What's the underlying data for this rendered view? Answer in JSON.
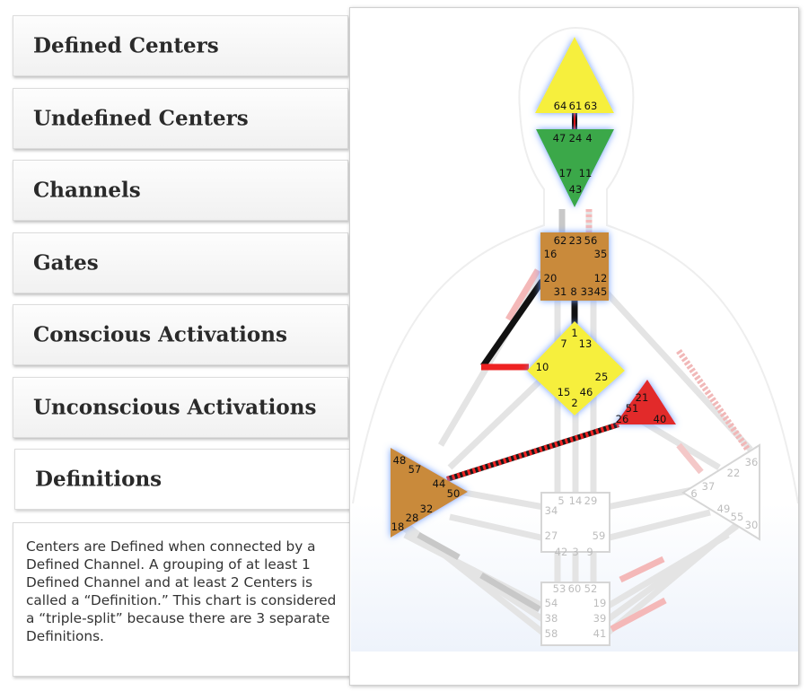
{
  "tabs": [
    {
      "label": "Defined Centers",
      "active": false
    },
    {
      "label": "Undefined Centers",
      "active": false
    },
    {
      "label": "Channels",
      "active": false
    },
    {
      "label": "Gates",
      "active": false
    },
    {
      "label": "Conscious Activations",
      "active": false
    },
    {
      "label": "Unconscious Activations",
      "active": false
    },
    {
      "label": "Definitions",
      "active": true
    }
  ],
  "description": "Centers are Defined when connected by a Defined Channel. A grouping of at least 1 Defined Channel and at least 2 Centers is called a “Definition.” This chart is considered a “triple-split” because there are 3 separate Definitions.",
  "colors": {
    "head": "#f6ef3d",
    "ajna": "#3aa84a",
    "throat": "#c98a3a",
    "g": "#f6ef3d",
    "heart": "#e22a2a",
    "spleen": "#c98a3a",
    "glow": "#7fa7ff",
    "undefined_outline": "#d6d6d6"
  },
  "gates": {
    "head": [
      "64",
      "61",
      "63"
    ],
    "ajna": [
      "47",
      "24",
      "4",
      "17",
      "11",
      "43"
    ],
    "throat": [
      "62",
      "23",
      "56",
      "16",
      "35",
      "20",
      "12",
      "31",
      "8",
      "33",
      "45"
    ],
    "g": [
      "1",
      "7",
      "13",
      "10",
      "25",
      "15",
      "46",
      "2"
    ],
    "heart": [
      "21",
      "51",
      "26",
      "40"
    ],
    "spleen": [
      "48",
      "57",
      "44",
      "50",
      "32",
      "28",
      "18"
    ],
    "sacral": [
      "5",
      "14",
      "29",
      "34",
      "27",
      "59",
      "42",
      "3",
      "9"
    ],
    "root": [
      "53",
      "60",
      "52",
      "54",
      "19",
      "38",
      "39",
      "58",
      "41"
    ],
    "solar_plexus": [
      "36",
      "22",
      "6",
      "37",
      "49",
      "55",
      "30"
    ]
  }
}
